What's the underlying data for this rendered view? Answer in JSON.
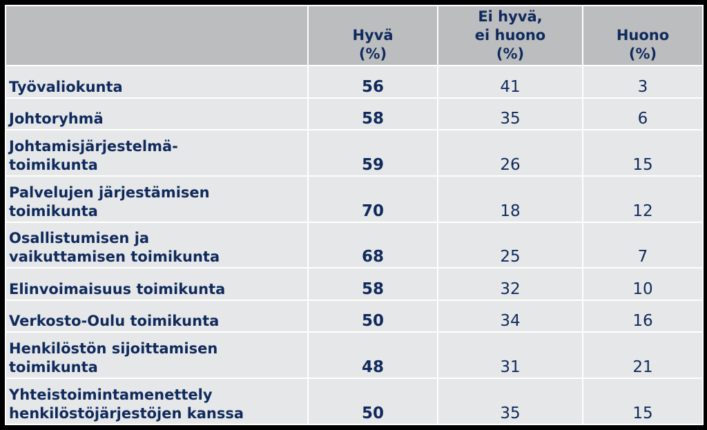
{
  "table": {
    "headers": {
      "col0": "",
      "col1_line1": "Hyvä",
      "col1_line2": "(%)",
      "col2_line1": "Ei hyvä,",
      "col2_line2": "ei huono",
      "col2_line3": "(%)",
      "col3_line1": "Huono",
      "col3_line2": "(%)"
    },
    "rows": [
      {
        "label_line1": "Työvaliokunta",
        "label_line2": "",
        "good": "56",
        "neutral": "41",
        "bad": "3"
      },
      {
        "label_line1": "Johtoryhmä",
        "label_line2": "",
        "good": "58",
        "neutral": "35",
        "bad": "6"
      },
      {
        "label_line1": "Johtamisjärjestelmä-",
        "label_line2": "toimikunta",
        "good": "59",
        "neutral": "26",
        "bad": "15"
      },
      {
        "label_line1": "Palvelujen järjestämisen",
        "label_line2": "toimikunta",
        "good": "70",
        "neutral": "18",
        "bad": "12"
      },
      {
        "label_line1": "Osallistumisen ja",
        "label_line2": "vaikuttamisen toimikunta",
        "good": "68",
        "neutral": "25",
        "bad": "7"
      },
      {
        "label_line1": "Elinvoimaisuus toimikunta",
        "label_line2": "",
        "good": "58",
        "neutral": "32",
        "bad": "10"
      },
      {
        "label_line1": "Verkosto-Oulu toimikunta",
        "label_line2": "",
        "good": "50",
        "neutral": "34",
        "bad": "16"
      },
      {
        "label_line1": "Henkilöstön sijoittamisen",
        "label_line2": "toimikunta",
        "good": "48",
        "neutral": "31",
        "bad": "21"
      },
      {
        "label_line1": "Yhteistoimintamenettely",
        "label_line2": "henkilöstöjärjestöjen kanssa",
        "good": "50",
        "neutral": "35",
        "bad": "15"
      }
    ]
  },
  "colors": {
    "text": "#0f2a5c",
    "header_bg": "#bcbdbf",
    "body_bg": "#e6e7e8",
    "border": "#ffffff",
    "frame": "#000000"
  }
}
